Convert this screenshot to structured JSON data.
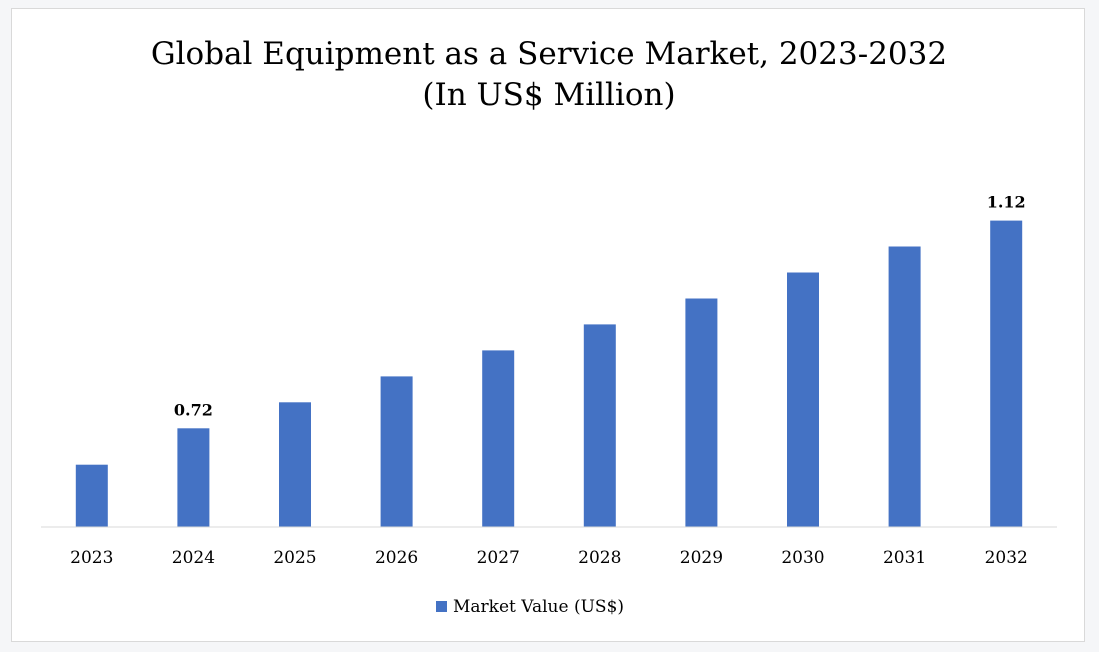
{
  "chart_data": {
    "type": "bar",
    "title": "Global Equipment as a Service Market, 2023-2032",
    "subtitle": "(In US$ Million)",
    "categories": [
      "2023",
      "2024",
      "2025",
      "2026",
      "2027",
      "2028",
      "2029",
      "2030",
      "2031",
      "2032"
    ],
    "series": [
      {
        "name": "Market Value (US$)",
        "values": [
          0.65,
          0.72,
          0.77,
          0.82,
          0.87,
          0.92,
          0.97,
          1.02,
          1.07,
          1.12
        ],
        "color": "#4472c4"
      }
    ],
    "data_labels": [
      {
        "category": "2024",
        "text": "0.72"
      },
      {
        "category": "2032",
        "text": "1.12"
      }
    ],
    "xlabel": "",
    "ylabel": "",
    "ylim": [
      0.53,
      1.2
    ],
    "y_axis_visible": false,
    "grid": false,
    "legend_position": "bottom"
  }
}
